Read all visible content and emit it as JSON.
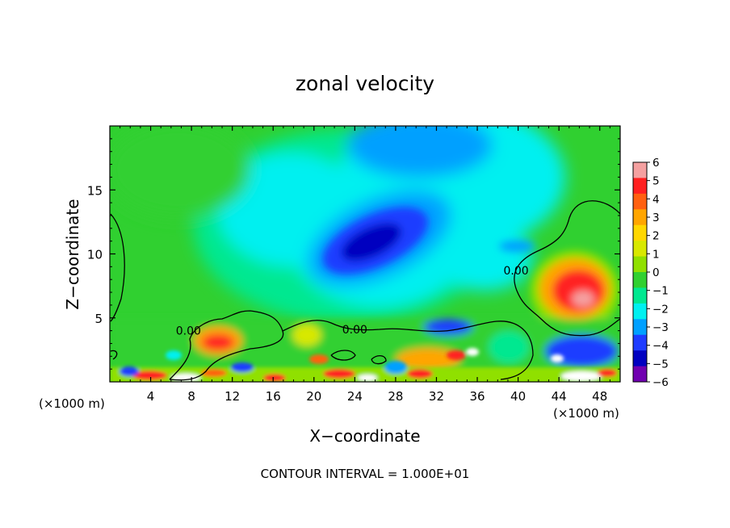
{
  "chart_data": {
    "type": "heatmap",
    "title": "zonal velocity",
    "xlabel": "X−coordinate",
    "ylabel": "Z−coordinate",
    "x_unit_label_left": "(×1000 m)",
    "x_unit_label_right": "(×1000 m)",
    "footer": "CONTOUR INTERVAL = 1.000E+01",
    "xlim": [
      0,
      50
    ],
    "ylim": [
      0,
      20
    ],
    "x_ticks": [
      4,
      8,
      12,
      16,
      20,
      24,
      28,
      32,
      36,
      40,
      44,
      48
    ],
    "x_tick_labels": [
      "4",
      "8",
      "12",
      "16",
      "20",
      "24",
      "28",
      "32",
      "36",
      "40",
      "44",
      "48"
    ],
    "y_ticks": [
      5,
      10,
      15
    ],
    "y_tick_labels": [
      "5",
      "10",
      "15"
    ],
    "colorbar": {
      "min": -6,
      "max": 6,
      "labels": [
        "6",
        "5",
        "4",
        "3",
        "2",
        "1",
        "0",
        "−1",
        "−2",
        "−3",
        "−4",
        "−5",
        "−6"
      ],
      "colors": [
        "#f4a0a0",
        "#ff2020",
        "#ff6010",
        "#ffa500",
        "#ffd700",
        "#d8e800",
        "#90e000",
        "#30d030",
        "#00e890",
        "#00f0f0",
        "#00a0ff",
        "#1e3cff",
        "#0000c0",
        "#7000b0"
      ]
    },
    "contour_labels": [
      {
        "text": "0.00",
        "x": 7.7,
        "z": 3.7
      },
      {
        "text": "0.00",
        "x": 24.0,
        "z": 3.8
      },
      {
        "text": "0.00",
        "x": 39.8,
        "z": 8.4
      }
    ],
    "features": [
      {
        "name": "jet core minimum",
        "x": 27,
        "z": 11,
        "value": -5.5
      },
      {
        "name": "positive cell",
        "x": 46,
        "z": 7,
        "value": 5
      },
      {
        "name": "positive cell",
        "x": 11,
        "z": 3,
        "value": 4.5
      }
    ]
  }
}
